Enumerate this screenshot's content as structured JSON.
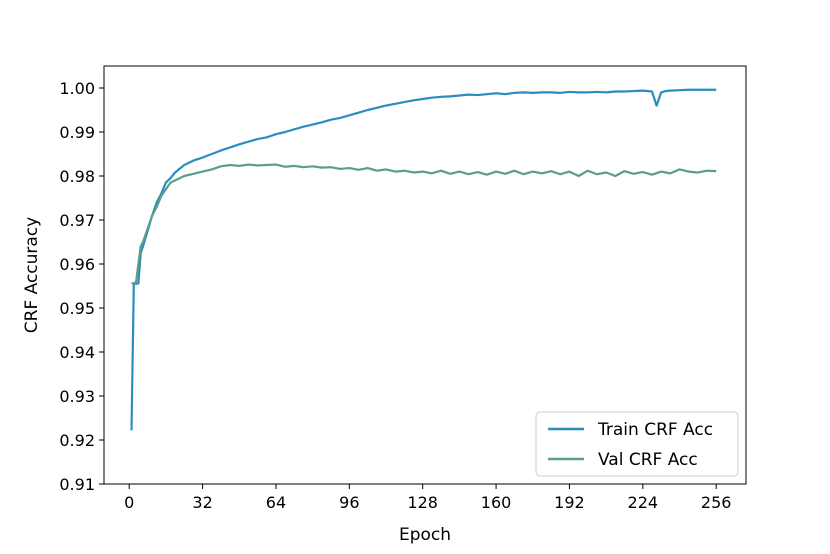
{
  "chart_data": {
    "type": "line",
    "title": "",
    "xlabel": "Epoch",
    "ylabel": "CRF Accuracy",
    "xlim": [
      -11,
      269
    ],
    "ylim": [
      0.91,
      1.005
    ],
    "xticks": [
      0,
      32,
      64,
      96,
      128,
      160,
      192,
      224,
      256
    ],
    "yticks": [
      0.91,
      0.92,
      0.93,
      0.94,
      0.95,
      0.96,
      0.97,
      0.98,
      0.99,
      1.0
    ],
    "ytick_labels": [
      "0.91",
      "0.92",
      "0.93",
      "0.94",
      "0.95",
      "0.96",
      "0.97",
      "0.98",
      "0.99",
      "1.00"
    ],
    "grid": false,
    "legend_position": "lower-right",
    "series": [
      {
        "name": "Train CRF Acc",
        "color": "#2b8cbe",
        "x": [
          1,
          2,
          3,
          4,
          5,
          6,
          8,
          10,
          12,
          14,
          16,
          18,
          20,
          24,
          28,
          32,
          36,
          40,
          44,
          48,
          52,
          56,
          60,
          64,
          68,
          72,
          76,
          80,
          84,
          88,
          92,
          96,
          100,
          104,
          108,
          112,
          116,
          120,
          124,
          128,
          132,
          136,
          140,
          144,
          148,
          152,
          156,
          160,
          164,
          168,
          172,
          176,
          180,
          184,
          188,
          192,
          196,
          200,
          204,
          208,
          212,
          216,
          220,
          224,
          228,
          230,
          232,
          234,
          236,
          240,
          244,
          248,
          252,
          256
        ],
        "y": [
          0.9222,
          0.9556,
          0.9555,
          0.9556,
          0.9625,
          0.964,
          0.9675,
          0.971,
          0.974,
          0.976,
          0.9785,
          0.9795,
          0.9808,
          0.9825,
          0.9835,
          0.9842,
          0.985,
          0.9858,
          0.9865,
          0.9872,
          0.9878,
          0.9884,
          0.9888,
          0.9895,
          0.99,
          0.9906,
          0.9912,
          0.9917,
          0.9922,
          0.9928,
          0.9932,
          0.9938,
          0.9944,
          0.995,
          0.9955,
          0.996,
          0.9964,
          0.9968,
          0.9972,
          0.9975,
          0.9978,
          0.998,
          0.9981,
          0.9983,
          0.9985,
          0.9984,
          0.9986,
          0.9988,
          0.9986,
          0.9989,
          0.999,
          0.9989,
          0.999,
          0.999,
          0.9989,
          0.9991,
          0.999,
          0.999,
          0.9991,
          0.999,
          0.9992,
          0.9992,
          0.9993,
          0.9994,
          0.9992,
          0.996,
          0.999,
          0.9993,
          0.9994,
          0.9995,
          0.9996,
          0.9996,
          0.9996,
          0.9996
        ]
      },
      {
        "name": "Val CRF Acc",
        "color": "#5a9e8a",
        "x": [
          1,
          2,
          3,
          4,
          5,
          6,
          8,
          10,
          12,
          14,
          16,
          18,
          20,
          24,
          28,
          32,
          36,
          40,
          44,
          48,
          52,
          56,
          60,
          64,
          68,
          72,
          76,
          80,
          84,
          88,
          92,
          96,
          100,
          104,
          108,
          112,
          116,
          120,
          124,
          128,
          132,
          136,
          140,
          144,
          148,
          152,
          156,
          160,
          164,
          168,
          172,
          176,
          180,
          184,
          188,
          192,
          196,
          200,
          204,
          208,
          212,
          216,
          220,
          224,
          228,
          232,
          236,
          240,
          244,
          248,
          252,
          256
        ],
        "y": [
          0.9556,
          0.9556,
          0.956,
          0.96,
          0.964,
          0.965,
          0.968,
          0.971,
          0.973,
          0.9755,
          0.977,
          0.9785,
          0.979,
          0.98,
          0.9805,
          0.981,
          0.9815,
          0.9822,
          0.9825,
          0.9823,
          0.9826,
          0.9824,
          0.9825,
          0.9826,
          0.9821,
          0.9823,
          0.982,
          0.9822,
          0.9819,
          0.982,
          0.9816,
          0.9818,
          0.9814,
          0.9818,
          0.9812,
          0.9815,
          0.981,
          0.9812,
          0.9808,
          0.981,
          0.9806,
          0.9812,
          0.9805,
          0.981,
          0.9804,
          0.9809,
          0.9803,
          0.981,
          0.9805,
          0.9812,
          0.9804,
          0.981,
          0.9806,
          0.9811,
          0.9804,
          0.981,
          0.98,
          0.9812,
          0.9804,
          0.9808,
          0.98,
          0.9811,
          0.9805,
          0.9809,
          0.9803,
          0.981,
          0.9806,
          0.9815,
          0.981,
          0.9808,
          0.9812,
          0.9811
        ]
      }
    ]
  }
}
